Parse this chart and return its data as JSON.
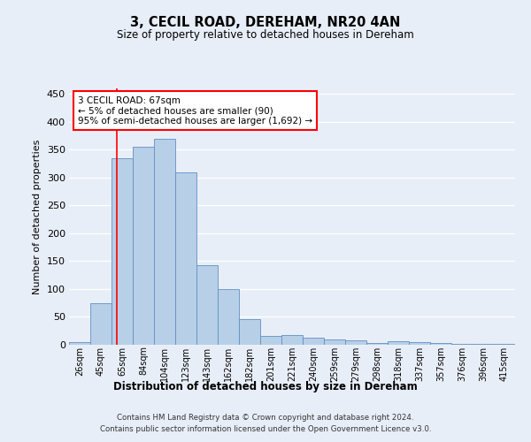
{
  "title1": "3, CECIL ROAD, DEREHAM, NR20 4AN",
  "title2": "Size of property relative to detached houses in Dereham",
  "xlabel": "Distribution of detached houses by size in Dereham",
  "ylabel": "Number of detached properties",
  "categories": [
    "26sqm",
    "45sqm",
    "65sqm",
    "84sqm",
    "104sqm",
    "123sqm",
    "143sqm",
    "162sqm",
    "182sqm",
    "201sqm",
    "221sqm",
    "240sqm",
    "259sqm",
    "279sqm",
    "298sqm",
    "318sqm",
    "337sqm",
    "357sqm",
    "376sqm",
    "396sqm",
    "415sqm"
  ],
  "values": [
    5,
    75,
    335,
    355,
    370,
    310,
    143,
    100,
    46,
    16,
    17,
    12,
    10,
    8,
    3,
    6,
    5,
    3,
    1,
    1,
    1
  ],
  "bar_color": "#b8cfe8",
  "bar_edge_color": "#6090c0",
  "annotation_line1": "3 CECIL ROAD: 67sqm",
  "annotation_line2": "← 5% of detached houses are smaller (90)",
  "annotation_line3": "95% of semi-detached houses are larger (1,692) →",
  "red_line_x": 1.75,
  "footer1": "Contains HM Land Registry data © Crown copyright and database right 2024.",
  "footer2": "Contains public sector information licensed under the Open Government Licence v3.0.",
  "ylim": [
    0,
    460
  ],
  "yticks": [
    0,
    50,
    100,
    150,
    200,
    250,
    300,
    350,
    400,
    450
  ],
  "background_color": "#e8eef8",
  "fig_background": "#e8eef8"
}
